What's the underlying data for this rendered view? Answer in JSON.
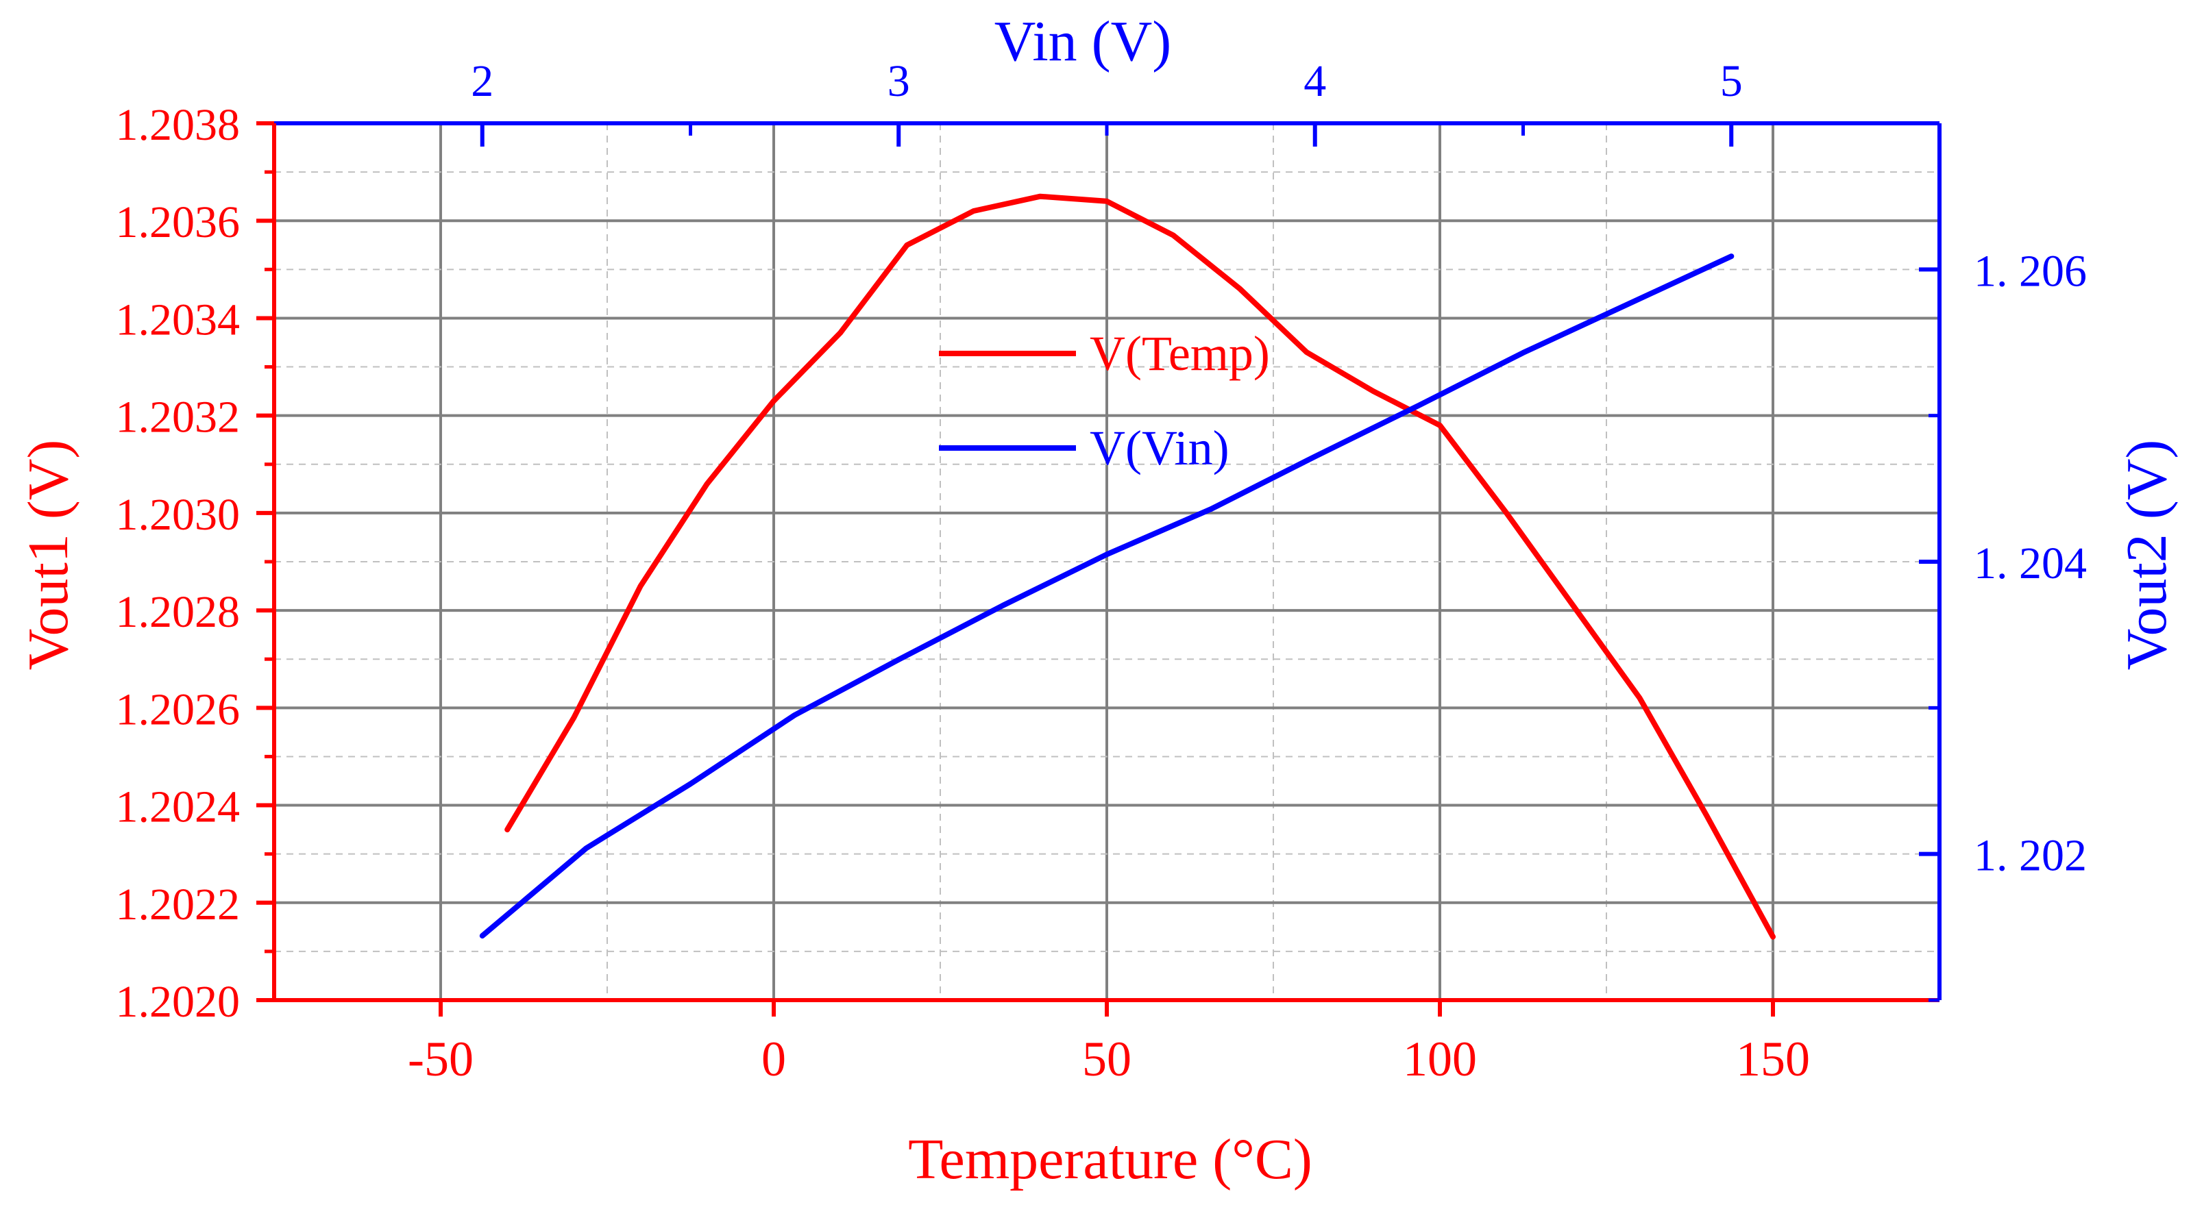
{
  "chart_data": {
    "type": "line",
    "bottom_axis": {
      "label": "Temperature (°C)",
      "min": -75,
      "max": 175,
      "ticks": [
        -50,
        0,
        50,
        100,
        150
      ],
      "tick_labels": [
        "-50",
        "0",
        "50",
        "100",
        "150"
      ],
      "color": "#ff0000"
    },
    "top_axis": {
      "label": "Vin (V)",
      "min": 1.5,
      "max": 5.5,
      "ticks": [
        2,
        3,
        4,
        5
      ],
      "tick_labels": [
        "2",
        "3",
        "4",
        "5"
      ],
      "color": "#0000ff"
    },
    "left_axis": {
      "label": "Vout1 (V)",
      "min": 1.202,
      "max": 1.2038,
      "ticks": [
        1.202,
        1.2022,
        1.2024,
        1.2026,
        1.2028,
        1.203,
        1.2032,
        1.2034,
        1.2036,
        1.2038
      ],
      "tick_labels": [
        "1.2020",
        "1.2022",
        "1.2024",
        "1.2026",
        "1.2028",
        "1.2030",
        "1.2032",
        "1.2034",
        "1.2036",
        "1.2038"
      ],
      "color": "#ff0000"
    },
    "right_axis": {
      "label": "Vout2 (V)",
      "min": 1.201,
      "max": 1.207,
      "ticks": [
        1.202,
        1.204,
        1.206
      ],
      "tick_labels": [
        "1. 202",
        "1. 204",
        "1. 206"
      ],
      "color": "#0000ff"
    },
    "grid": true,
    "legend": {
      "position": "center-top",
      "entries": [
        {
          "label": "V(Temp)",
          "color": "#ff0000"
        },
        {
          "label": "V(Vin)",
          "color": "#0000ff"
        }
      ]
    },
    "series": [
      {
        "name": "V(Temp)",
        "color": "#ff0000",
        "x_axis": "bottom",
        "y_axis": "left",
        "x": [
          -40,
          -30,
          -20,
          -10,
          0,
          10,
          20,
          30,
          40,
          50,
          60,
          70,
          80,
          90,
          100,
          110,
          120,
          130,
          140,
          150
        ],
        "y": [
          1.20235,
          1.20258,
          1.20285,
          1.20306,
          1.20323,
          1.20337,
          1.20355,
          1.20362,
          1.20365,
          1.20364,
          1.20357,
          1.20346,
          1.20333,
          1.20325,
          1.20318,
          1.203,
          1.20281,
          1.20262,
          1.20238,
          1.20213
        ]
      },
      {
        "name": "V(Vin)",
        "color": "#0000ff",
        "x_axis": "top",
        "y_axis": "right",
        "x": [
          2.0,
          2.25,
          2.5,
          2.75,
          3.0,
          3.25,
          3.5,
          3.75,
          4.0,
          4.25,
          4.5,
          4.75,
          5.0
        ],
        "y": [
          1.20144,
          1.20204,
          1.20248,
          1.20295,
          1.20333,
          1.2037,
          1.20405,
          1.20436,
          1.20472,
          1.20507,
          1.20543,
          1.20576,
          1.20609
        ]
      }
    ]
  }
}
